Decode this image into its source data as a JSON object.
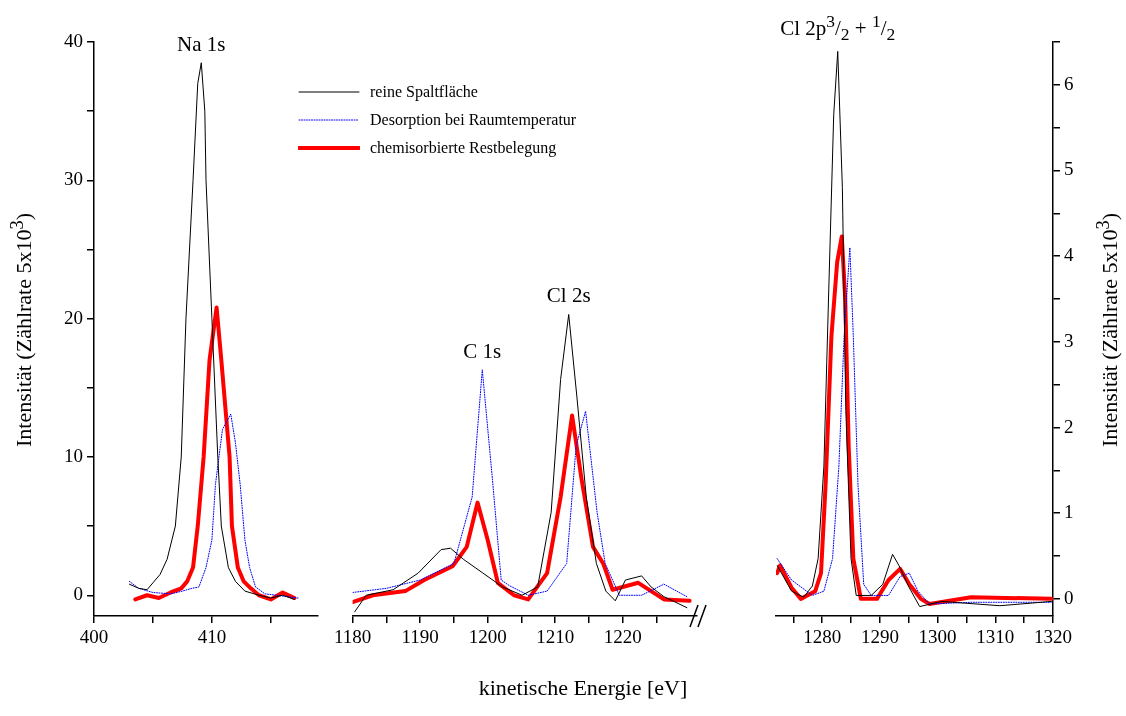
{
  "chart_data": [
    {
      "type": "line",
      "ylabel": "Intensität (Zählrate 5x10$^{3}$)",
      "xlim": [
        400,
        419
      ],
      "xticks": [
        400,
        {
          "value": 405,
          "label": null
        },
        410,
        {
          "value": 415,
          "label": null
        }
      ],
      "ylim": [
        -1.5,
        40
      ],
      "yticks": [
        0,
        {
          "value": 5,
          "label": null
        },
        10,
        {
          "value": 15,
          "label": null
        },
        20,
        {
          "value": 25,
          "label": null
        },
        30,
        {
          "value": 35,
          "label": null
        },
        40
      ],
      "annotations": [
        {
          "text": "Na 1s",
          "x": 409.1,
          "y": 38.5
        }
      ],
      "series": [
        {
          "color": "#000000",
          "x": [
            403.0,
            403.8,
            404.5,
            405.0,
            405.6,
            406.2,
            406.9,
            407.4,
            407.8,
            408.4,
            408.8,
            409.1,
            409.4,
            409.5,
            410.0,
            410.5,
            410.8,
            411.4,
            412.0,
            412.8,
            414.0,
            415.0,
            416.0,
            417.0
          ],
          "values": [
            0.8,
            0.5,
            0.4,
            0.9,
            1.5,
            2.6,
            5,
            10,
            20,
            30,
            37,
            38.5,
            35,
            30,
            20,
            10,
            5,
            2,
            1,
            0.3,
            0,
            -0.2,
            0,
            -0.3
          ]
        },
        {
          "color": "#0000ff",
          "line_style": "dotted",
          "x": [
            403.0,
            403.8,
            405.0,
            406.5,
            407.5,
            408.3,
            408.9,
            409.5,
            410.0,
            410.3,
            410.9,
            411.6,
            412.0,
            412.4,
            412.8,
            413.2,
            413.7,
            414.5,
            415.5,
            417.3
          ],
          "values": [
            1.0,
            0.5,
            0.2,
            0.1,
            0.3,
            0.5,
            0.6,
            2,
            4,
            8,
            12,
            13.1,
            11,
            8,
            4,
            2,
            0.6,
            0.1,
            0,
            -0.2
          ]
        },
        {
          "color": "#ff0000",
          "x": [
            403.5,
            404.5,
            405.5,
            406.5,
            407.4,
            407.9,
            408.4,
            408.8,
            409.3,
            409.8,
            410.4,
            410.8,
            411.2,
            411.5,
            411.7,
            412.2,
            412.7,
            413.3,
            414.0,
            415.0,
            416.0,
            417.0
          ],
          "values": [
            -0.3,
            0,
            -0.2,
            0.2,
            0.5,
            1,
            2,
            5,
            10,
            17,
            20.8,
            17,
            13,
            10,
            5,
            2,
            1,
            0.5,
            0,
            -0.3,
            0.2,
            -0.2
          ]
        }
      ]
    },
    {
      "type": "line",
      "xlabel": "kinetische Energie [eV]",
      "tick_labels": "x",
      "legend": "top left",
      "xlim": [
        1180,
        1231
      ],
      "xticks": [
        1180,
        {
          "value": 1185,
          "label": null
        },
        1190,
        {
          "value": 1195,
          "label": null
        },
        1200,
        {
          "value": 1205,
          "label": null
        },
        1210,
        {
          "value": 1215,
          "label": null
        },
        1220,
        {
          "value": 1225,
          "label": null
        }
      ],
      "ylim": [
        -1.5,
        40
      ],
      "annotations": [
        {
          "text": "C 1s",
          "x": 1199.2,
          "y": 16.3
        },
        {
          "text": "Cl 2s",
          "x": 1212.0,
          "y": 20.3
        }
      ],
      "series": [
        {
          "name": "reine Spaltfläche",
          "color": "#000000",
          "x": [
            1180.3,
            1182.0,
            1186.0,
            1189.7,
            1193.1,
            1194.5,
            1196.4,
            1199.3,
            1202.2,
            1205.1,
            1207.4,
            1209.4,
            1210.8,
            1212.0,
            1213.2,
            1214.6,
            1216.1,
            1217.5,
            1218.9,
            1220.4,
            1222.8,
            1224.2,
            1226.1,
            1229.5
          ],
          "values": [
            -1.2,
            0,
            0.4,
            1.6,
            3.3,
            3.4,
            2.6,
            1.6,
            0.6,
            0,
            0.6,
            6.0,
            15.6,
            20.3,
            14.4,
            7.1,
            2.3,
            0.3,
            -0.4,
            1.1,
            1.4,
            0.6,
            -0.1,
            -0.9
          ]
        },
        {
          "name": "Desorption bei Raumtemperatur",
          "color": "#0000ff",
          "line_style": "dotted",
          "x": [
            1180.0,
            1185.0,
            1190.0,
            1195.0,
            1197.7,
            1199.2,
            1200.7,
            1202.0,
            1203.2,
            1206.0,
            1208.8,
            1211.7,
            1213.1,
            1214.5,
            1216.2,
            1217.4,
            1219.5,
            1222.8,
            1226.1,
            1229.5
          ],
          "values": [
            0.2,
            0.5,
            1.1,
            2.3,
            7.1,
            16.3,
            8.4,
            1.1,
            0.7,
            0,
            0.3,
            2.3,
            10.8,
            13.3,
            6.0,
            2.3,
            0,
            0,
            0.8,
            -0.1
          ]
        },
        {
          "name": "chemisorbierte Restbelegung",
          "color": "#ff0000",
          "x": [
            1180.0,
            1183.0,
            1187.8,
            1190.6,
            1194.8,
            1196.9,
            1198.5,
            1200.0,
            1201.5,
            1203.9,
            1206.0,
            1208.8,
            1210.8,
            1212.5,
            1213.9,
            1215.6,
            1217.1,
            1218.5,
            1222.3,
            1226.1,
            1229.9
          ],
          "values": [
            -0.5,
            0,
            0.3,
            1.1,
            2.1,
            3.5,
            6.7,
            4.0,
            0.9,
            0,
            -0.3,
            1.6,
            7.1,
            13.0,
            8.4,
            3.5,
            2.3,
            0.4,
            0.9,
            -0.3,
            -0.4
          ]
        }
      ]
    },
    {
      "type": "line",
      "y2label": "Intensität (Zählrate 5x10$^{3}$)",
      "xlim": [
        1272,
        1320
      ],
      "xticks": [
        {
          "value": 1275,
          "label": null
        },
        1280,
        {
          "value": 1285,
          "label": null
        },
        1290,
        {
          "value": 1295,
          "label": null
        },
        1300,
        {
          "value": 1305,
          "label": null
        },
        1310,
        {
          "value": 1315,
          "label": null
        },
        1320
      ],
      "y2lim": [
        -0.2,
        6.5
      ],
      "y2ticks": [
        0,
        {
          "value": 0.5,
          "label": null
        },
        1,
        {
          "value": 1.5,
          "label": null
        },
        2,
        {
          "value": 2.5,
          "label": null
        },
        3,
        {
          "value": 3.5,
          "label": null
        },
        4,
        {
          "value": 4.5,
          "label": null
        },
        5,
        {
          "value": 5.5,
          "label": null
        },
        6,
        {
          "value": 6.5,
          "label": null
        }
      ],
      "annotations": [
        "Cl 2p$^{3}$/$_{2}$ + $^{1}$/$_{2}$"
      ],
      "series": [
        {
          "color": "#000000",
          "axis": "y2",
          "x": [
            1272.2,
            1274.7,
            1276.8,
            1278.3,
            1279.3,
            1280.3,
            1281.1,
            1282.0,
            1282.7,
            1283.5,
            1284.1,
            1285.0,
            1285.9,
            1288.5,
            1290.5,
            1292.2,
            1293.3,
            1295.1,
            1296.9,
            1300.7,
            1310.8,
            1319.7
          ],
          "values": [
            0.39,
            0.09,
            0.02,
            0.15,
            0.47,
            1.55,
            3.5,
            5.65,
            6.39,
            4.8,
            2.2,
            0.47,
            0.04,
            0.04,
            0.17,
            0.52,
            0.39,
            0.13,
            -0.09,
            -0.03,
            -0.08,
            -0.03
          ]
        },
        {
          "color": "#0000ff",
          "axis": "y2",
          "line_style": "dotted",
          "x": [
            1272.2,
            1274.7,
            1278.3,
            1280.3,
            1281.8,
            1282.9,
            1283.8,
            1284.8,
            1285.4,
            1286.2,
            1287.2,
            1288.5,
            1291.5,
            1293.5,
            1295.1,
            1296.6,
            1298.6,
            1305.8,
            1319.7
          ],
          "values": [
            0.47,
            0.22,
            0.04,
            0.09,
            0.47,
            1.55,
            3.06,
            4.1,
            3.06,
            1.34,
            0.17,
            0.04,
            0.04,
            0.26,
            0.3,
            0.09,
            -0.06,
            -0.04,
            -0.04
          ]
        },
        {
          "color": "#ff0000",
          "axis": "y2",
          "x": [
            1272.2,
            1272.7,
            1274.7,
            1276.3,
            1278.8,
            1279.8,
            1280.6,
            1281.6,
            1282.6,
            1283.4,
            1284.0,
            1284.6,
            1285.4,
            1286.7,
            1289.5,
            1291.5,
            1293.5,
            1295.1,
            1297.1,
            1298.6,
            1305.8,
            1319.7
          ],
          "values": [
            0.3,
            0.39,
            0.13,
            0,
            0.09,
            0.3,
            1.34,
            3.06,
            3.93,
            4.23,
            3.5,
            1.77,
            0.47,
            0,
            0,
            0.22,
            0.35,
            0.17,
            0,
            -0.06,
            0.02,
            0
          ]
        }
      ]
    }
  ]
}
